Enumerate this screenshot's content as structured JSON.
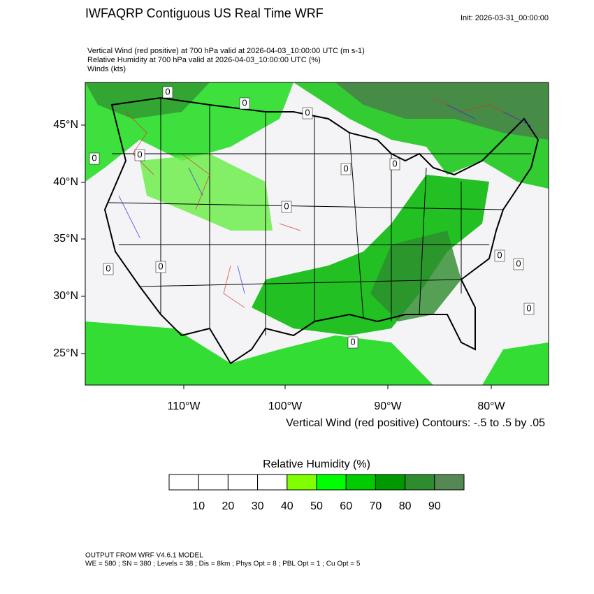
{
  "header": {
    "title": "IWFAQRP Contiguous US Real Time WRF",
    "init": "Init: 2026-03-31_00:00:00",
    "lines": [
      "Vertical Wind (red positive) at 700 hPa valid at 2026-04-03_10:00:00 UTC   (m s-1)",
      "Relative Humidity at 700 hPa valid at 2026-04-03_10:00:00 UTC   (%)",
      "Winds   (kts)"
    ]
  },
  "map": {
    "lat_labels": [
      "45°N",
      "40°N",
      "35°N",
      "30°N",
      "25°N"
    ],
    "lon_labels": [
      "110°W",
      "100°W",
      "90°W",
      "80°W"
    ],
    "contour_labels": [
      "0",
      "0",
      "0",
      "0",
      "0",
      "0",
      "0",
      "0",
      "0",
      "0",
      "0",
      "0",
      "0",
      "0"
    ],
    "contour_note": "Vertical Wind (red positive) Contours: -.5 to .5 by .05"
  },
  "colorbar": {
    "title": "Relative Humidity  (%)",
    "ticks": [
      10,
      20,
      30,
      40,
      50,
      60,
      70,
      80,
      90
    ],
    "colors": [
      "#ffffff",
      "#ffffff",
      "#ffffff",
      "#ffffff",
      "#80ff00",
      "#00ff00",
      "#00cc00",
      "#009900",
      "#2e8b2e",
      "#558855"
    ]
  },
  "footer": {
    "lines": [
      "OUTPUT FROM WRF V4.6.1 MODEL",
      "WE = 580 ; SN = 380 ; Levels = 38 ; Dis = 8km ; Phys Opt = 8 ; PBL Opt = 1 ; Cu Opt = 5"
    ]
  }
}
